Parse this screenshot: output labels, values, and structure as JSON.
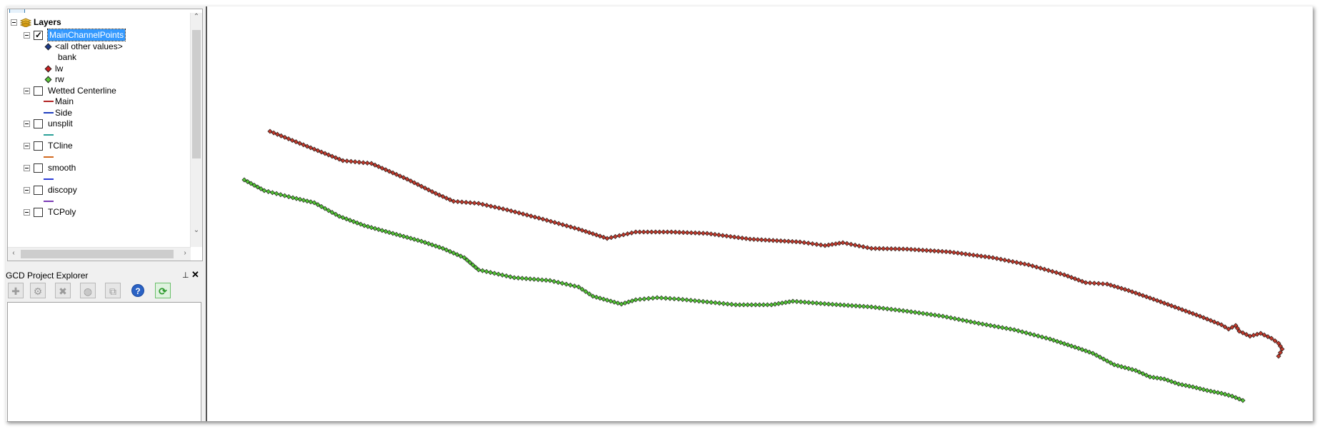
{
  "toc": {
    "root_label": "Layers",
    "layers": [
      {
        "name": "MainChannelPoints",
        "checked": true,
        "selected": true,
        "classes": [
          {
            "label": "<all other values>",
            "symbol": "dot",
            "color": "#1e3a8a"
          },
          {
            "label": "bank",
            "symbol": "none",
            "color": ""
          },
          {
            "label": "lw",
            "symbol": "dot",
            "color": "#cc1f1f"
          },
          {
            "label": "rw",
            "symbol": "dot",
            "color": "#5cc93a"
          }
        ]
      },
      {
        "name": "Wetted Centerline",
        "checked": false,
        "classes": [
          {
            "label": "Main",
            "symbol": "line",
            "color": "#b22222"
          },
          {
            "label": "Side",
            "symbol": "line",
            "color": "#1f3fbf"
          }
        ]
      },
      {
        "name": "unsplit",
        "checked": false,
        "classes": [
          {
            "label": "",
            "symbol": "line",
            "color": "#2aa198"
          }
        ]
      },
      {
        "name": "TCline",
        "checked": false,
        "classes": [
          {
            "label": "",
            "symbol": "line",
            "color": "#d2691e"
          }
        ]
      },
      {
        "name": "smooth",
        "checked": false,
        "classes": [
          {
            "label": "",
            "symbol": "line",
            "color": "#2c3cd6"
          }
        ]
      },
      {
        "name": "discopy",
        "checked": false,
        "classes": [
          {
            "label": "",
            "symbol": "line",
            "color": "#7a3ab5"
          }
        ]
      },
      {
        "name": "TCPoly",
        "checked": false,
        "classes": []
      }
    ]
  },
  "gcd": {
    "title": "GCD Project Explorer",
    "pin_icon": "⊥",
    "close_icon": "✕"
  },
  "map": {
    "lw_color": "#c0392b",
    "rw_color": "#52c234"
  }
}
